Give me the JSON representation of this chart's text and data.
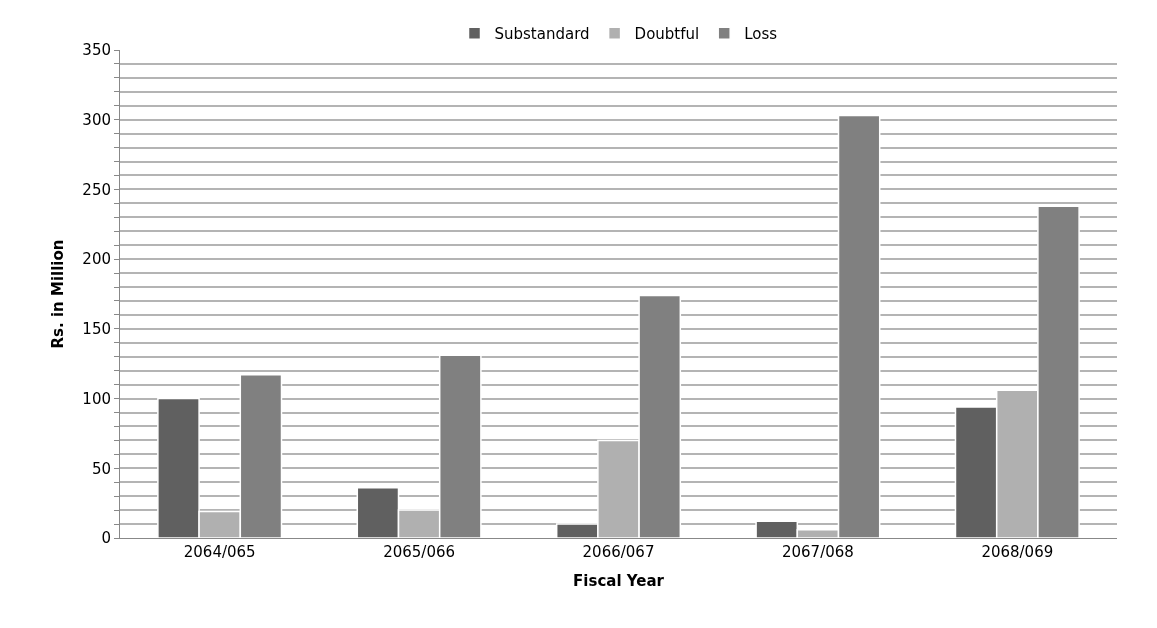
{
  "chart_data": {
    "type": "bar",
    "xlabel": "Fiscal Year",
    "ylabel": "Rs. in Million",
    "categories": [
      "2064/065",
      "2065/066",
      "2066/067",
      "2067/068",
      "2068/069"
    ],
    "series": [
      {
        "name": "Substandard",
        "color": "#606060",
        "values": [
          100,
          36,
          10,
          12,
          94
        ]
      },
      {
        "name": "Doubtful",
        "color": "#b0b0b0",
        "values": [
          19,
          20,
          70,
          6,
          106
        ]
      },
      {
        "name": "Loss",
        "color": "#808080",
        "values": [
          117,
          131,
          174,
          303,
          238
        ]
      }
    ],
    "ylim": [
      0,
      350
    ],
    "yticks": [
      0,
      {
        "value": 10,
        "label": null
      },
      {
        "value": 20,
        "label": null
      },
      {
        "value": 30,
        "label": null
      },
      {
        "value": 40,
        "label": null
      },
      50,
      {
        "value": 60,
        "label": null
      },
      {
        "value": 70,
        "label": null
      },
      {
        "value": 80,
        "label": null
      },
      {
        "value": 90,
        "label": null
      },
      100,
      {
        "value": 110,
        "label": null
      },
      {
        "value": 120,
        "label": null
      },
      {
        "value": 130,
        "label": null
      },
      {
        "value": 140,
        "label": null
      },
      150,
      {
        "value": 160,
        "label": null
      },
      {
        "value": 170,
        "label": null
      },
      {
        "value": 180,
        "label": null
      },
      {
        "value": 190,
        "label": null
      },
      200,
      {
        "value": 210,
        "label": null
      },
      {
        "value": 220,
        "label": null
      },
      {
        "value": 230,
        "label": null
      },
      {
        "value": 240,
        "label": null
      },
      250,
      {
        "value": 260,
        "label": null
      },
      {
        "value": 270,
        "label": null
      },
      {
        "value": 280,
        "label": null
      },
      {
        "value": 290,
        "label": null
      },
      300,
      {
        "value": 310,
        "label": null
      },
      {
        "value": 320,
        "label": null
      },
      {
        "value": 330,
        "label": null
      },
      {
        "value": 340,
        "label": null
      },
      350
    ],
    "grid": "y",
    "legend": "top"
  }
}
